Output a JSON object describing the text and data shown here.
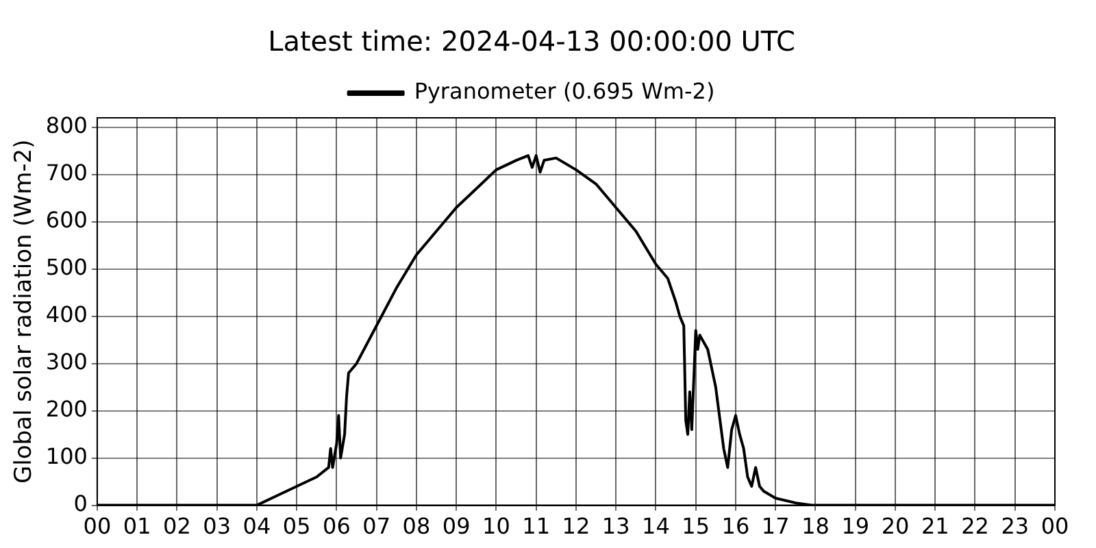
{
  "chart_data": {
    "type": "line",
    "title": "Latest time: 2024-04-13 00:00:00 UTC",
    "ylabel": "Global solar radiation (Wm-2)",
    "x": [
      0,
      4.0,
      4.5,
      5.0,
      5.5,
      5.8,
      5.85,
      5.9,
      6.0,
      6.05,
      6.1,
      6.2,
      6.25,
      6.3,
      6.5,
      7.0,
      7.5,
      8.0,
      8.5,
      9.0,
      9.5,
      10.0,
      10.5,
      10.8,
      10.9,
      11.0,
      11.1,
      11.2,
      11.5,
      12.0,
      12.5,
      13.0,
      13.5,
      14.0,
      14.3,
      14.5,
      14.6,
      14.7,
      14.75,
      14.8,
      14.85,
      14.9,
      15.0,
      15.05,
      15.1,
      15.3,
      15.5,
      15.7,
      15.8,
      15.9,
      16.0,
      16.1,
      16.2,
      16.3,
      16.4,
      16.5,
      16.6,
      16.7,
      17.0,
      17.5,
      17.9,
      24
    ],
    "series": [
      {
        "name": "Pyranometer (0.695 Wm-2)",
        "color": "#000000",
        "values": [
          0,
          0,
          20,
          40,
          60,
          80,
          120,
          80,
          130,
          190,
          100,
          150,
          230,
          280,
          300,
          380,
          460,
          530,
          580,
          630,
          670,
          710,
          730,
          740,
          715,
          740,
          705,
          730,
          735,
          710,
          680,
          630,
          580,
          510,
          480,
          430,
          400,
          380,
          180,
          150,
          240,
          160,
          370,
          330,
          360,
          330,
          250,
          120,
          80,
          160,
          190,
          150,
          120,
          60,
          40,
          80,
          40,
          30,
          15,
          5,
          0,
          0
        ]
      }
    ],
    "xlim": [
      0,
      24
    ],
    "xticks": [
      {
        "value": 0,
        "label": "00"
      },
      {
        "value": 1,
        "label": "01"
      },
      {
        "value": 2,
        "label": "02"
      },
      {
        "value": 3,
        "label": "03"
      },
      {
        "value": 4,
        "label": "04"
      },
      {
        "value": 5,
        "label": "05"
      },
      {
        "value": 6,
        "label": "06"
      },
      {
        "value": 7,
        "label": "07"
      },
      {
        "value": 8,
        "label": "08"
      },
      {
        "value": 9,
        "label": "09"
      },
      {
        "value": 10,
        "label": "10"
      },
      {
        "value": 11,
        "label": "11"
      },
      {
        "value": 12,
        "label": "12"
      },
      {
        "value": 13,
        "label": "13"
      },
      {
        "value": 14,
        "label": "14"
      },
      {
        "value": 15,
        "label": "15"
      },
      {
        "value": 16,
        "label": "16"
      },
      {
        "value": 17,
        "label": "17"
      },
      {
        "value": 18,
        "label": "18"
      },
      {
        "value": 19,
        "label": "19"
      },
      {
        "value": 20,
        "label": "20"
      },
      {
        "value": 21,
        "label": "21"
      },
      {
        "value": 22,
        "label": "22"
      },
      {
        "value": 23,
        "label": "23"
      },
      {
        "value": 24,
        "label": "00"
      }
    ],
    "ylim": [
      0,
      820
    ],
    "yticks": [
      0,
      100,
      200,
      300,
      400,
      500,
      600,
      700,
      800
    ],
    "grid": true,
    "legend": "top",
    "marker": "none",
    "line_style": "solid"
  }
}
